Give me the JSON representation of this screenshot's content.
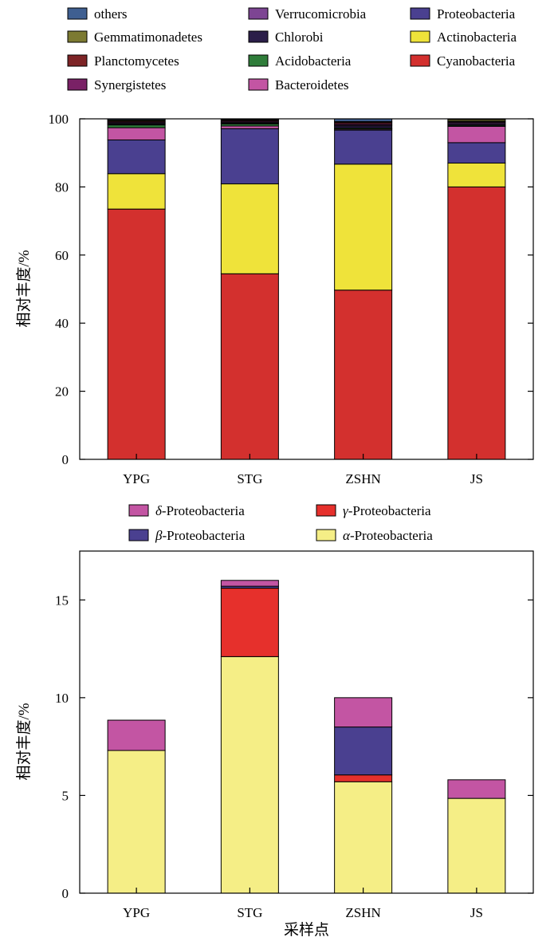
{
  "colors": {
    "others": "#3f5f91",
    "Gemmatimonadetes": "#7c7a32",
    "Planctomycetes": "#7d2426",
    "Synergistetes": "#7a2166",
    "Verrucomicrobia": "#7d4593",
    "Chlorobi": "#2b1e49",
    "Acidobacteria": "#2f7d3a",
    "Bacteroidetes": "#c355a3",
    "Proteobacteria": "#4a4090",
    "Actinobacteria": "#efe33a",
    "Cyanobacteria": "#d3302e",
    "delta": "#c355a3",
    "gamma": "#e6302c",
    "beta": "#4a4090",
    "alpha": "#f5ee86"
  },
  "chart_data": [
    {
      "type": "bar",
      "stacked": true,
      "categories": [
        "YPG",
        "STG",
        "ZSHN",
        "JS"
      ],
      "ylabel": "相对丰度/%",
      "xlabel": "",
      "ylim": [
        0,
        100
      ],
      "yticks": [
        0,
        20,
        40,
        60,
        80,
        100
      ],
      "legend_placement": "top",
      "legend": [
        {
          "name": "others",
          "color_key": "others"
        },
        {
          "name": "Verrucomicrobia",
          "color_key": "Verrucomicrobia"
        },
        {
          "name": "Proteobacteria",
          "color_key": "Proteobacteria"
        },
        {
          "name": "Gemmatimonadetes",
          "color_key": "Gemmatimonadetes"
        },
        {
          "name": "Chlorobi",
          "color_key": "Chlorobi"
        },
        {
          "name": "Actinobacteria",
          "color_key": "Actinobacteria"
        },
        {
          "name": "Planctomycetes",
          "color_key": "Planctomycetes"
        },
        {
          "name": "Acidobacteria",
          "color_key": "Acidobacteria"
        },
        {
          "name": "Cyanobacteria",
          "color_key": "Cyanobacteria"
        },
        {
          "name": "Synergistetes",
          "color_key": "Synergistetes"
        },
        {
          "name": "Bacteroidetes",
          "color_key": "Bacteroidetes"
        }
      ],
      "series": [
        {
          "name": "Cyanobacteria",
          "values": [
            73.5,
            54.5,
            49.7,
            80.0
          ]
        },
        {
          "name": "Actinobacteria",
          "values": [
            10.4,
            26.4,
            37.0,
            7.0
          ]
        },
        {
          "name": "Proteobacteria",
          "values": [
            9.9,
            16.2,
            10.0,
            6.0
          ]
        },
        {
          "name": "Bacteroidetes",
          "values": [
            3.6,
            0.8,
            0.3,
            4.8
          ]
        },
        {
          "name": "Acidobacteria",
          "values": [
            0.8,
            0.6,
            0.3,
            0.3
          ]
        },
        {
          "name": "Chlorobi",
          "values": [
            0.3,
            0.2,
            0.6,
            0.3
          ]
        },
        {
          "name": "Verrucomicrobia",
          "values": [
            0.3,
            0.3,
            0.3,
            0.4
          ]
        },
        {
          "name": "Synergistetes",
          "values": [
            0.3,
            0.3,
            0.4,
            0.3
          ]
        },
        {
          "name": "Planctomycetes",
          "values": [
            0.3,
            0.3,
            0.4,
            0.2
          ]
        },
        {
          "name": "Gemmatimonadetes",
          "values": [
            0.3,
            0.2,
            0.2,
            0.5
          ]
        },
        {
          "name": "others",
          "values": [
            0.3,
            0.2,
            0.8,
            0.2
          ]
        }
      ]
    },
    {
      "type": "bar",
      "stacked": true,
      "categories": [
        "YPG",
        "STG",
        "ZSHN",
        "JS"
      ],
      "ylabel": "相对丰度/%",
      "xlabel": "采样点",
      "ylim": [
        0,
        17.5
      ],
      "yticks": [
        0,
        5,
        10,
        15
      ],
      "legend_placement": "top",
      "legend": [
        {
          "greek": "δ",
          "suffix": "-Proteobacteria",
          "color_key": "delta"
        },
        {
          "greek": "γ",
          "suffix": "-Proteobacteria",
          "color_key": "gamma"
        },
        {
          "greek": "β",
          "suffix": "-Proteobacteria",
          "color_key": "beta"
        },
        {
          "greek": "α",
          "suffix": "-Proteobacteria",
          "color_key": "alpha"
        }
      ],
      "series": [
        {
          "name": "α-Proteobacteria",
          "color_key": "alpha",
          "values": [
            7.3,
            12.1,
            5.7,
            4.85
          ]
        },
        {
          "name": "γ-Proteobacteria",
          "color_key": "gamma",
          "values": [
            0,
            3.5,
            0.35,
            0
          ]
        },
        {
          "name": "β-Proteobacteria",
          "color_key": "beta",
          "values": [
            0,
            0.1,
            2.45,
            0
          ]
        },
        {
          "name": "δ-Proteobacteria",
          "color_key": "delta",
          "values": [
            1.55,
            0.3,
            1.5,
            0.95
          ]
        }
      ]
    }
  ]
}
